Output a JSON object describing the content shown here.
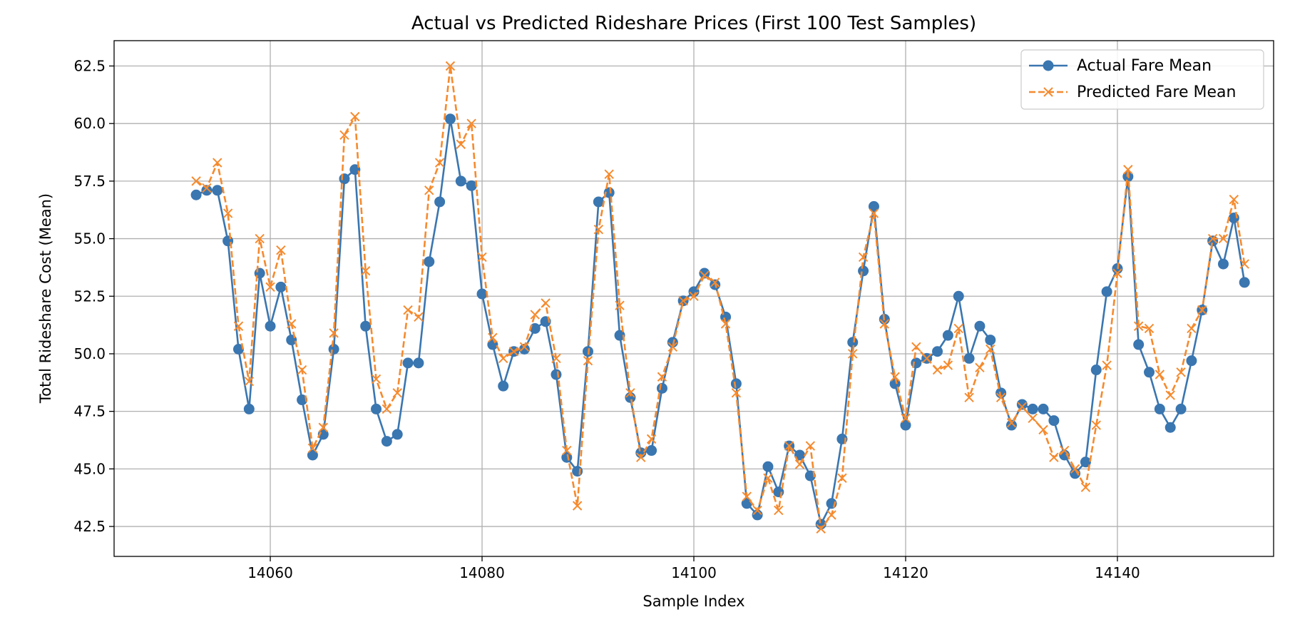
{
  "chart_data": {
    "type": "line",
    "title": "Actual vs Predicted Rideshare Prices (First 100 Test Samples)",
    "xlabel": "Sample Index",
    "ylabel": "Total Rideshare Cost (Mean)",
    "xlim": [
      14045.25,
      14154.75
    ],
    "ylim": [
      41.2,
      63.6
    ],
    "xticks": [
      14060,
      14080,
      14100,
      14120,
      14140
    ],
    "yticks": [
      42.5,
      45.0,
      47.5,
      50.0,
      52.5,
      55.0,
      57.5,
      60.0,
      62.5
    ],
    "grid": true,
    "legend_position": "top-right",
    "x_start": 14053,
    "series": [
      {
        "name": "Actual Fare Mean",
        "color": "#3a76b0",
        "line_style": "solid",
        "marker": "circle",
        "values": [
          56.9,
          57.1,
          57.1,
          54.9,
          50.2,
          47.6,
          53.5,
          51.2,
          52.9,
          50.6,
          48.0,
          45.6,
          46.5,
          50.2,
          57.6,
          58.0,
          51.2,
          47.6,
          46.2,
          46.5,
          49.6,
          49.6,
          54.0,
          56.6,
          60.2,
          57.5,
          57.3,
          52.6,
          50.4,
          48.6,
          50.1,
          50.2,
          51.1,
          51.4,
          49.1,
          45.5,
          44.9,
          50.1,
          56.6,
          57.0,
          50.8,
          48.1,
          45.7,
          45.8,
          48.5,
          50.5,
          52.3,
          52.7,
          53.5,
          53.0,
          51.6,
          48.7,
          43.5,
          43.0,
          45.1,
          44.0,
          46.0,
          45.6,
          44.7,
          42.6,
          43.5,
          46.3,
          50.5,
          53.6,
          56.4,
          51.5,
          48.7,
          46.9,
          49.6,
          49.8,
          50.1,
          50.8,
          52.5,
          49.8,
          51.2,
          50.6,
          48.3,
          46.9,
          47.8,
          47.6,
          47.6,
          47.1,
          45.6,
          44.8,
          45.3,
          49.3,
          52.7,
          53.7,
          57.7,
          50.4,
          49.2,
          47.6,
          46.8,
          47.6,
          49.7,
          51.9,
          54.9,
          53.9,
          55.9,
          53.1
        ]
      },
      {
        "name": "Predicted Fare Mean",
        "color": "#f58a2e",
        "line_style": "dashed",
        "marker": "x",
        "values": [
          57.5,
          57.2,
          58.3,
          56.1,
          51.2,
          48.8,
          55.0,
          52.9,
          54.5,
          51.3,
          49.3,
          45.9,
          46.8,
          50.9,
          59.5,
          60.3,
          53.6,
          48.9,
          47.6,
          48.3,
          51.9,
          51.6,
          57.1,
          58.3,
          62.5,
          59.1,
          60.0,
          54.2,
          50.7,
          49.8,
          50.1,
          50.3,
          51.7,
          52.2,
          49.8,
          45.8,
          43.4,
          49.7,
          55.4,
          57.8,
          52.1,
          48.3,
          45.5,
          46.3,
          49.0,
          50.3,
          52.3,
          52.5,
          53.4,
          53.1,
          51.3,
          48.3,
          43.8,
          43.2,
          44.6,
          43.2,
          46.0,
          45.2,
          46.0,
          42.4,
          43.0,
          44.6,
          50.0,
          54.2,
          56.1,
          51.3,
          49.0,
          47.2,
          50.3,
          49.8,
          49.3,
          49.5,
          51.1,
          48.1,
          49.4,
          50.2,
          48.1,
          47.0,
          47.7,
          47.2,
          46.7,
          45.5,
          45.8,
          45.0,
          44.2,
          46.9,
          49.5,
          53.5,
          58.0,
          51.2,
          51.1,
          49.1,
          48.2,
          49.2,
          51.1,
          51.9,
          55.0,
          55.0,
          56.7,
          53.9
        ]
      }
    ]
  }
}
